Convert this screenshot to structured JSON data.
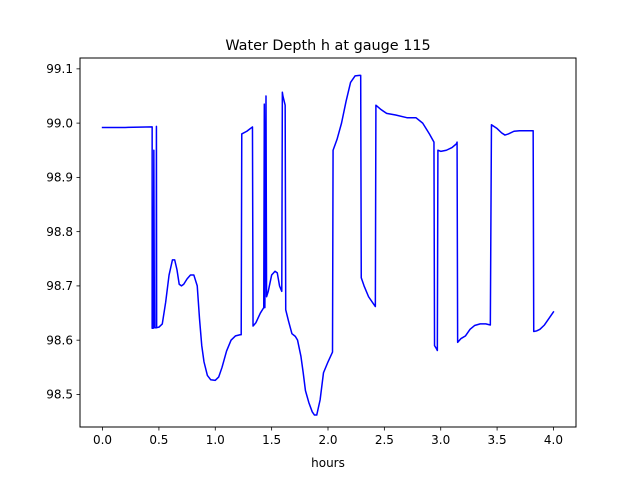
{
  "chart_data": {
    "type": "line",
    "title": "Water Depth h at gauge 115",
    "xlabel": "hours",
    "ylabel": "",
    "xlim": [
      -0.2,
      4.2
    ],
    "ylim": [
      98.44,
      99.12
    ],
    "x_ticks": [
      0.0,
      0.5,
      1.0,
      1.5,
      2.0,
      2.5,
      3.0,
      3.5,
      4.0
    ],
    "x_tick_labels": [
      "0.0",
      "0.5",
      "1.0",
      "1.5",
      "2.0",
      "2.5",
      "3.0",
      "3.5",
      "4.0"
    ],
    "y_ticks": [
      98.5,
      98.6,
      98.7,
      98.8,
      98.9,
      99.0,
      99.1
    ],
    "y_tick_labels": [
      "98.5",
      "98.6",
      "98.7",
      "98.8",
      "98.9",
      "99.0",
      "99.1"
    ],
    "grid": false,
    "series": [
      {
        "color": "#0000ff",
        "points": [
          [
            0.0,
            98.992
          ],
          [
            0.2,
            98.992
          ],
          [
            0.44,
            98.993
          ],
          [
            0.44,
            98.622
          ],
          [
            0.45,
            98.622
          ],
          [
            0.455,
            98.95
          ],
          [
            0.46,
            98.623
          ],
          [
            0.475,
            98.623
          ],
          [
            0.478,
            98.994
          ],
          [
            0.48,
            98.623
          ],
          [
            0.5,
            98.624
          ],
          [
            0.53,
            98.63
          ],
          [
            0.56,
            98.67
          ],
          [
            0.59,
            98.72
          ],
          [
            0.62,
            98.748
          ],
          [
            0.64,
            98.748
          ],
          [
            0.66,
            98.73
          ],
          [
            0.68,
            98.703
          ],
          [
            0.7,
            98.7
          ],
          [
            0.72,
            98.703
          ],
          [
            0.75,
            98.713
          ],
          [
            0.78,
            98.72
          ],
          [
            0.81,
            98.72
          ],
          [
            0.84,
            98.7
          ],
          [
            0.86,
            98.64
          ],
          [
            0.88,
            98.59
          ],
          [
            0.9,
            98.56
          ],
          [
            0.93,
            98.535
          ],
          [
            0.96,
            98.527
          ],
          [
            1.0,
            98.526
          ],
          [
            1.03,
            98.532
          ],
          [
            1.06,
            98.55
          ],
          [
            1.1,
            98.58
          ],
          [
            1.14,
            98.6
          ],
          [
            1.18,
            98.608
          ],
          [
            1.22,
            98.61
          ],
          [
            1.23,
            98.61
          ],
          [
            1.235,
            98.98
          ],
          [
            1.28,
            98.985
          ],
          [
            1.33,
            98.993
          ],
          [
            1.335,
            98.626
          ],
          [
            1.36,
            98.632
          ],
          [
            1.4,
            98.65
          ],
          [
            1.43,
            98.66
          ],
          [
            1.435,
            99.035
          ],
          [
            1.44,
            98.66
          ],
          [
            1.45,
            99.05
          ],
          [
            1.455,
            98.68
          ],
          [
            1.47,
            98.69
          ],
          [
            1.5,
            98.72
          ],
          [
            1.53,
            98.727
          ],
          [
            1.55,
            98.724
          ],
          [
            1.57,
            98.7
          ],
          [
            1.59,
            98.69
          ],
          [
            1.595,
            99.057
          ],
          [
            1.6,
            99.05
          ],
          [
            1.62,
            99.033
          ],
          [
            1.625,
            98.656
          ],
          [
            1.65,
            98.635
          ],
          [
            1.68,
            98.612
          ],
          [
            1.71,
            98.607
          ],
          [
            1.73,
            98.6
          ],
          [
            1.76,
            98.57
          ],
          [
            1.78,
            98.54
          ],
          [
            1.8,
            98.507
          ],
          [
            1.83,
            98.485
          ],
          [
            1.86,
            98.468
          ],
          [
            1.88,
            98.462
          ],
          [
            1.9,
            98.462
          ],
          [
            1.93,
            98.49
          ],
          [
            1.96,
            98.54
          ],
          [
            2.0,
            98.56
          ],
          [
            2.04,
            98.578
          ],
          [
            2.045,
            98.95
          ],
          [
            2.08,
            98.97
          ],
          [
            2.12,
            99.0
          ],
          [
            2.16,
            99.04
          ],
          [
            2.2,
            99.075
          ],
          [
            2.24,
            99.087
          ],
          [
            2.28,
            99.088
          ],
          [
            2.29,
            99.088
          ],
          [
            2.295,
            98.715
          ],
          [
            2.32,
            98.7
          ],
          [
            2.36,
            98.68
          ],
          [
            2.4,
            98.668
          ],
          [
            2.42,
            98.662
          ],
          [
            2.425,
            99.033
          ],
          [
            2.47,
            99.025
          ],
          [
            2.52,
            99.018
          ],
          [
            2.6,
            99.015
          ],
          [
            2.7,
            99.01
          ],
          [
            2.78,
            99.01
          ],
          [
            2.84,
            99.0
          ],
          [
            2.9,
            98.98
          ],
          [
            2.94,
            98.965
          ],
          [
            2.945,
            98.59
          ],
          [
            2.96,
            98.585
          ],
          [
            2.97,
            98.581
          ],
          [
            2.975,
            98.95
          ],
          [
            3.0,
            98.948
          ],
          [
            3.05,
            98.95
          ],
          [
            3.1,
            98.955
          ],
          [
            3.14,
            98.962
          ],
          [
            3.145,
            98.965
          ],
          [
            3.15,
            98.596
          ],
          [
            3.18,
            98.603
          ],
          [
            3.22,
            98.608
          ],
          [
            3.26,
            98.62
          ],
          [
            3.3,
            98.627
          ],
          [
            3.35,
            98.63
          ],
          [
            3.4,
            98.63
          ],
          [
            3.44,
            98.628
          ],
          [
            3.45,
            98.997
          ],
          [
            3.5,
            98.99
          ],
          [
            3.54,
            98.982
          ],
          [
            3.57,
            98.978
          ],
          [
            3.6,
            98.98
          ],
          [
            3.65,
            98.985
          ],
          [
            3.7,
            98.986
          ],
          [
            3.76,
            98.986
          ],
          [
            3.8,
            98.986
          ],
          [
            3.82,
            98.986
          ],
          [
            3.825,
            98.616
          ],
          [
            3.85,
            98.617
          ],
          [
            3.88,
            98.62
          ],
          [
            3.92,
            98.628
          ],
          [
            3.96,
            98.64
          ],
          [
            4.0,
            98.652
          ]
        ]
      }
    ]
  }
}
